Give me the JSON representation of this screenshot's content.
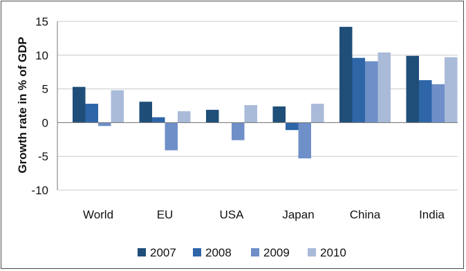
{
  "chart_data": {
    "type": "bar",
    "title": "",
    "xlabel": "",
    "ylabel": "Growth rate in % of GDP",
    "ylim": [
      -10,
      15
    ],
    "yticks": [
      15,
      10,
      5,
      0,
      -5,
      -10
    ],
    "grid": true,
    "legend": "bottom",
    "categories": [
      "World",
      "EU",
      "USA",
      "Japan",
      "China",
      "India"
    ],
    "series": [
      {
        "name": "2007",
        "color": "#1f4e79",
        "values": [
          5.3,
          3.1,
          1.9,
          2.4,
          14.2,
          9.9
        ]
      },
      {
        "name": "2008",
        "color": "#2e66a8",
        "values": [
          2.8,
          0.8,
          0.0,
          -1.1,
          9.6,
          6.3
        ]
      },
      {
        "name": "2009",
        "color": "#6f8fc8",
        "values": [
          -0.5,
          -4.1,
          -2.6,
          -5.3,
          9.1,
          5.7
        ]
      },
      {
        "name": "2010",
        "color": "#a9bbd9",
        "values": [
          4.8,
          1.7,
          2.6,
          2.8,
          10.4,
          9.7
        ]
      }
    ]
  }
}
